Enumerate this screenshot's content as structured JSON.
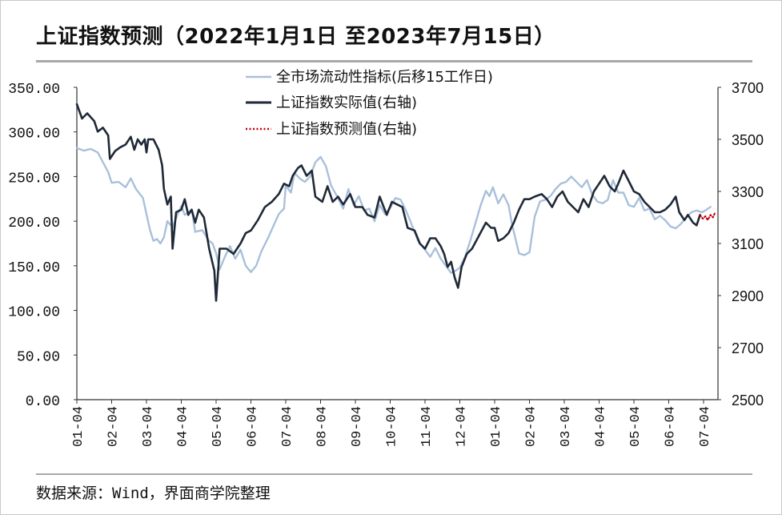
{
  "title": "上证指数预测（2022年1月1日 至2023年7月15日）",
  "source": "数据来源：Wind，界面商学院整理",
  "colors": {
    "liquidity": "#a9c0db",
    "actual": "#1f2937",
    "forecast": "#c0000d",
    "rule": "#a8a8a8"
  },
  "chart_data": {
    "type": "line",
    "title": "上证指数预测（2022年1月1日 至2023年7月15日）",
    "x_tick_labels": [
      "01-04",
      "02-04",
      "03-04",
      "04-04",
      "05-04",
      "06-04",
      "07-04",
      "08-04",
      "09-04",
      "10-04",
      "11-04",
      "12-04",
      "01-04",
      "02-04",
      "03-04",
      "04-04",
      "05-04",
      "06-04",
      "07-04"
    ],
    "left_axis": {
      "ylim": [
        0,
        350
      ],
      "ticks": [
        "0.00",
        "50.00",
        "100.00",
        "150.00",
        "200.00",
        "250.00",
        "300.00",
        "350.00"
      ]
    },
    "right_axis": {
      "ylim": [
        2500,
        3700
      ],
      "ticks": [
        "2500",
        "2700",
        "2900",
        "3100",
        "3300",
        "3500",
        "3700"
      ]
    },
    "legend_position": "top",
    "grid": false,
    "series": [
      {
        "name": "全市场流动性指标(后移15工作日)",
        "axis": "left",
        "style": "solid",
        "points": [
          [
            0,
            282
          ],
          [
            0.2,
            279
          ],
          [
            0.4,
            281
          ],
          [
            0.6,
            277
          ],
          [
            0.9,
            255
          ],
          [
            1.0,
            243
          ],
          [
            1.2,
            244
          ],
          [
            1.4,
            238
          ],
          [
            1.55,
            248
          ],
          [
            1.7,
            236
          ],
          [
            1.9,
            226
          ],
          [
            2.0,
            208
          ],
          [
            2.1,
            190
          ],
          [
            2.2,
            178
          ],
          [
            2.3,
            180
          ],
          [
            2.4,
            175
          ],
          [
            2.5,
            182
          ],
          [
            2.6,
            200
          ],
          [
            2.75,
            193
          ],
          [
            2.9,
            208
          ],
          [
            3.0,
            217
          ],
          [
            3.1,
            207
          ],
          [
            3.3,
            213
          ],
          [
            3.4,
            188
          ],
          [
            3.6,
            190
          ],
          [
            3.8,
            178
          ],
          [
            3.9,
            175
          ],
          [
            4.0,
            164
          ],
          [
            4.1,
            146
          ],
          [
            4.25,
            160
          ],
          [
            4.4,
            172
          ],
          [
            4.55,
            158
          ],
          [
            4.7,
            168
          ],
          [
            4.85,
            150
          ],
          [
            5.0,
            143
          ],
          [
            5.15,
            150
          ],
          [
            5.3,
            166
          ],
          [
            5.5,
            182
          ],
          [
            5.65,
            195
          ],
          [
            5.8,
            208
          ],
          [
            5.95,
            214
          ],
          [
            6.0,
            240
          ],
          [
            6.15,
            232
          ],
          [
            6.25,
            254
          ],
          [
            6.4,
            248
          ],
          [
            6.55,
            244
          ],
          [
            6.7,
            250
          ],
          [
            6.85,
            266
          ],
          [
            7.0,
            272
          ],
          [
            7.15,
            262
          ],
          [
            7.3,
            240
          ],
          [
            7.5,
            226
          ],
          [
            7.65,
            214
          ],
          [
            7.8,
            236
          ],
          [
            7.95,
            218
          ],
          [
            8.1,
            228
          ],
          [
            8.25,
            212
          ],
          [
            8.4,
            214
          ],
          [
            8.55,
            200
          ],
          [
            8.7,
            218
          ],
          [
            8.85,
            208
          ],
          [
            9.0,
            215
          ],
          [
            9.15,
            226
          ],
          [
            9.3,
            224
          ],
          [
            9.45,
            212
          ],
          [
            9.6,
            198
          ],
          [
            9.8,
            178
          ],
          [
            10.0,
            168
          ],
          [
            10.15,
            160
          ],
          [
            10.3,
            170
          ],
          [
            10.45,
            158
          ],
          [
            10.6,
            150
          ],
          [
            10.75,
            142
          ],
          [
            10.9,
            145
          ],
          [
            11.0,
            148
          ],
          [
            11.15,
            160
          ],
          [
            11.3,
            178
          ],
          [
            11.45,
            198
          ],
          [
            11.6,
            218
          ],
          [
            11.75,
            234
          ],
          [
            11.85,
            228
          ],
          [
            11.95,
            238
          ],
          [
            12.1,
            220
          ],
          [
            12.25,
            230
          ],
          [
            12.4,
            218
          ],
          [
            12.5,
            196
          ],
          [
            12.6,
            180
          ],
          [
            12.7,
            164
          ],
          [
            12.85,
            162
          ],
          [
            13.0,
            165
          ],
          [
            13.15,
            205
          ],
          [
            13.3,
            222
          ],
          [
            13.45,
            224
          ],
          [
            13.6,
            228
          ],
          [
            13.75,
            236
          ],
          [
            13.9,
            242
          ],
          [
            14.05,
            244
          ],
          [
            14.2,
            250
          ],
          [
            14.35,
            244
          ],
          [
            14.5,
            238
          ],
          [
            14.65,
            246
          ],
          [
            14.8,
            230
          ],
          [
            14.95,
            222
          ],
          [
            15.1,
            220
          ],
          [
            15.25,
            224
          ],
          [
            15.4,
            246
          ],
          [
            15.55,
            232
          ],
          [
            15.7,
            232
          ],
          [
            15.85,
            218
          ],
          [
            16.0,
            216
          ],
          [
            16.15,
            226
          ],
          [
            16.3,
            212
          ],
          [
            16.45,
            214
          ],
          [
            16.6,
            202
          ],
          [
            16.75,
            206
          ],
          [
            16.9,
            201
          ],
          [
            17.05,
            194
          ],
          [
            17.2,
            192
          ],
          [
            17.35,
            197
          ],
          [
            17.5,
            204
          ],
          [
            17.65,
            210
          ],
          [
            17.8,
            212
          ],
          [
            17.95,
            210
          ],
          [
            18.05,
            212
          ],
          [
            18.2,
            216
          ]
        ]
      },
      {
        "name": "上证指数实际值(右轴)",
        "axis": "right",
        "style": "solid",
        "points": [
          [
            0,
            3635
          ],
          [
            0.15,
            3580
          ],
          [
            0.3,
            3600
          ],
          [
            0.5,
            3570
          ],
          [
            0.6,
            3530
          ],
          [
            0.75,
            3545
          ],
          [
            0.9,
            3515
          ],
          [
            0.95,
            3425
          ],
          [
            1.1,
            3455
          ],
          [
            1.25,
            3470
          ],
          [
            1.4,
            3480
          ],
          [
            1.55,
            3510
          ],
          [
            1.65,
            3460
          ],
          [
            1.75,
            3500
          ],
          [
            1.85,
            3480
          ],
          [
            1.95,
            3500
          ],
          [
            2.0,
            3450
          ],
          [
            2.05,
            3500
          ],
          [
            2.2,
            3500
          ],
          [
            2.35,
            3460
          ],
          [
            2.45,
            3400
          ],
          [
            2.5,
            3310
          ],
          [
            2.6,
            3250
          ],
          [
            2.7,
            3280
          ],
          [
            2.75,
            3080
          ],
          [
            2.85,
            3220
          ],
          [
            3.0,
            3230
          ],
          [
            3.1,
            3270
          ],
          [
            3.2,
            3210
          ],
          [
            3.3,
            3230
          ],
          [
            3.4,
            3180
          ],
          [
            3.5,
            3230
          ],
          [
            3.65,
            3200
          ],
          [
            3.8,
            3080
          ],
          [
            3.95,
            2995
          ],
          [
            4.0,
            2880
          ],
          [
            4.1,
            3080
          ],
          [
            4.3,
            3080
          ],
          [
            4.5,
            3060
          ],
          [
            4.7,
            3100
          ],
          [
            4.85,
            3140
          ],
          [
            5.0,
            3150
          ],
          [
            5.2,
            3190
          ],
          [
            5.4,
            3240
          ],
          [
            5.6,
            3260
          ],
          [
            5.8,
            3290
          ],
          [
            5.95,
            3330
          ],
          [
            6.1,
            3320
          ],
          [
            6.2,
            3360
          ],
          [
            6.35,
            3390
          ],
          [
            6.45,
            3400
          ],
          [
            6.6,
            3360
          ],
          [
            6.75,
            3380
          ],
          [
            6.85,
            3280
          ],
          [
            6.95,
            3270
          ],
          [
            7.05,
            3260
          ],
          [
            7.2,
            3320
          ],
          [
            7.35,
            3260
          ],
          [
            7.5,
            3280
          ],
          [
            7.65,
            3250
          ],
          [
            7.85,
            3290
          ],
          [
            8.0,
            3240
          ],
          [
            8.2,
            3240
          ],
          [
            8.35,
            3210
          ],
          [
            8.55,
            3200
          ],
          [
            8.7,
            3280
          ],
          [
            8.9,
            3210
          ],
          [
            9.05,
            3260
          ],
          [
            9.2,
            3250
          ],
          [
            9.35,
            3240
          ],
          [
            9.5,
            3160
          ],
          [
            9.7,
            3150
          ],
          [
            9.85,
            3100
          ],
          [
            10.0,
            3080
          ],
          [
            10.15,
            3120
          ],
          [
            10.3,
            3120
          ],
          [
            10.45,
            3090
          ],
          [
            10.55,
            3060
          ],
          [
            10.65,
            3010
          ],
          [
            10.75,
            3030
          ],
          [
            10.85,
            2970
          ],
          [
            10.95,
            2930
          ],
          [
            11.05,
            3010
          ],
          [
            11.2,
            3060
          ],
          [
            11.35,
            3080
          ],
          [
            11.55,
            3130
          ],
          [
            11.75,
            3180
          ],
          [
            11.9,
            3160
          ],
          [
            12.0,
            3160
          ],
          [
            12.1,
            3110
          ],
          [
            12.25,
            3120
          ],
          [
            12.4,
            3140
          ],
          [
            12.55,
            3180
          ],
          [
            12.7,
            3230
          ],
          [
            12.85,
            3270
          ],
          [
            13.0,
            3270
          ],
          [
            13.15,
            3280
          ],
          [
            13.35,
            3290
          ],
          [
            13.5,
            3270
          ],
          [
            13.65,
            3240
          ],
          [
            13.8,
            3280
          ],
          [
            13.95,
            3300
          ],
          [
            14.1,
            3260
          ],
          [
            14.25,
            3240
          ],
          [
            14.4,
            3220
          ],
          [
            14.55,
            3270
          ],
          [
            14.7,
            3240
          ],
          [
            14.85,
            3300
          ],
          [
            15.0,
            3330
          ],
          [
            15.15,
            3360
          ],
          [
            15.3,
            3320
          ],
          [
            15.45,
            3300
          ],
          [
            15.55,
            3330
          ],
          [
            15.7,
            3380
          ],
          [
            15.85,
            3340
          ],
          [
            16.0,
            3300
          ],
          [
            16.15,
            3290
          ],
          [
            16.3,
            3260
          ],
          [
            16.45,
            3240
          ],
          [
            16.6,
            3220
          ],
          [
            16.75,
            3220
          ],
          [
            16.9,
            3230
          ],
          [
            17.05,
            3250
          ],
          [
            17.2,
            3280
          ],
          [
            17.3,
            3220
          ],
          [
            17.45,
            3190
          ],
          [
            17.55,
            3210
          ],
          [
            17.7,
            3180
          ],
          [
            17.8,
            3170
          ],
          [
            17.9,
            3210
          ]
        ]
      },
      {
        "name": "上证指数预测值(右轴)",
        "axis": "right",
        "style": "dotted",
        "points": [
          [
            17.9,
            3210
          ],
          [
            17.98,
            3195
          ],
          [
            18.05,
            3205
          ],
          [
            18.12,
            3190
          ],
          [
            18.2,
            3210
          ],
          [
            18.27,
            3200
          ],
          [
            18.32,
            3215
          ]
        ]
      }
    ]
  }
}
